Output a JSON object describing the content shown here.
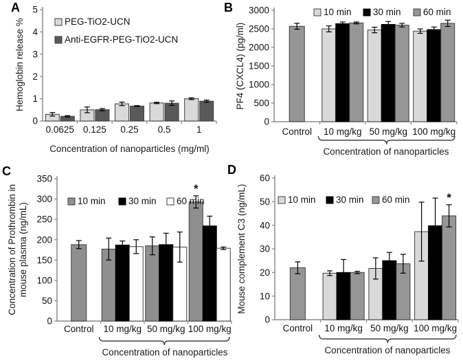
{
  "colors": {
    "light_gray": "#d9d9d9",
    "medium_gray": "#969696",
    "dark_gray": "#595959",
    "black": "#000000",
    "white": "#ffffff",
    "axis": "#8c8c8c",
    "error_bar": "#000000"
  },
  "chart_data": [
    {
      "panel": "A",
      "type": "bar",
      "ylabel": "Hemoglobin release %",
      "xlabel": "Concentration of nanoparticles (mg/ml)",
      "ylim": [
        0,
        5
      ],
      "yticks": [
        0,
        1,
        2,
        3,
        4,
        5
      ],
      "legend_position": "top-left-vertical",
      "series": [
        {
          "name": "PEG-TiO2-UCN",
          "color": "#d9d9d9"
        },
        {
          "name": "Anti-EGFR-PEG-TiO2-UCN",
          "color": "#595959"
        }
      ],
      "groups": [
        {
          "label": "0.0625",
          "bars": [
            {
              "series": 0,
              "value": 0.3,
              "error": 0.08
            },
            {
              "series": 1,
              "value": 0.21,
              "error": 0.03
            }
          ]
        },
        {
          "label": "0.125",
          "bars": [
            {
              "series": 0,
              "value": 0.5,
              "error": 0.13
            },
            {
              "series": 1,
              "value": 0.51,
              "error": 0.05
            }
          ]
        },
        {
          "label": "0.25",
          "bars": [
            {
              "series": 0,
              "value": 0.77,
              "error": 0.08
            },
            {
              "series": 1,
              "value": 0.67,
              "error": 0.02
            }
          ]
        },
        {
          "label": "0.5",
          "bars": [
            {
              "series": 0,
              "value": 0.81,
              "error": 0.03
            },
            {
              "series": 1,
              "value": 0.8,
              "error": 0.1
            }
          ]
        },
        {
          "label": "1",
          "bars": [
            {
              "series": 0,
              "value": 1.0,
              "error": 0.04
            },
            {
              "series": 1,
              "value": 0.89,
              "error": 0.05
            }
          ]
        }
      ],
      "annotations": []
    },
    {
      "panel": "B",
      "type": "bar",
      "ylabel": "PF4 (CXCL4) (pg/ml)",
      "xlabel": "Concentration of nanoparticles",
      "ylim": [
        0,
        3000
      ],
      "yticks": [
        0,
        500,
        1000,
        1500,
        2000,
        2500,
        3000
      ],
      "legend_position": "top-horizontal",
      "control_color": "#969696",
      "series": [
        {
          "name": "10 min",
          "color": "#d9d9d9"
        },
        {
          "name": "30 min",
          "color": "#000000"
        },
        {
          "name": "60 min",
          "color": "#969696"
        }
      ],
      "groups": [
        {
          "label": "Control",
          "bars": [
            {
              "series": "control",
              "value": 2570,
              "error": 80
            }
          ]
        },
        {
          "label": "10 mg/kg",
          "bars": [
            {
              "series": 0,
              "value": 2500,
              "error": 80
            },
            {
              "series": 1,
              "value": 2640,
              "error": 45
            },
            {
              "series": 2,
              "value": 2660,
              "error": 25
            }
          ]
        },
        {
          "label": "50 mg/kg",
          "bars": [
            {
              "series": 0,
              "value": 2470,
              "error": 75
            },
            {
              "series": 1,
              "value": 2620,
              "error": 80
            },
            {
              "series": 2,
              "value": 2600,
              "error": 50
            }
          ]
        },
        {
          "label": "100 mg/kg",
          "bars": [
            {
              "series": 0,
              "value": 2440,
              "error": 60
            },
            {
              "series": 1,
              "value": 2480,
              "error": 70
            },
            {
              "series": 2,
              "value": 2650,
              "error": 85
            }
          ]
        }
      ],
      "bracket": {
        "from": "10 mg/kg",
        "to": "100 mg/kg"
      },
      "annotations": []
    },
    {
      "panel": "C",
      "type": "bar",
      "ylabel": "Concentration of Prothrombin in\nmouse plasma (ng/mL)",
      "xlabel": "Concentration of nanoparticles",
      "ylim": [
        0,
        350
      ],
      "yticks": [
        0,
        50,
        100,
        150,
        200,
        250,
        300,
        350
      ],
      "legend_position": "top-horizontal",
      "control_color": "#8f8f8f",
      "series": [
        {
          "name": "10 min",
          "color": "#8f8f8f"
        },
        {
          "name": "30 min",
          "color": "#000000"
        },
        {
          "name": "60 min",
          "color": "#ffffff"
        }
      ],
      "groups": [
        {
          "label": "Control",
          "bars": [
            {
              "series": "control",
              "value": 188,
              "error": 10
            }
          ]
        },
        {
          "label": "10 mg/kg",
          "bars": [
            {
              "series": 0,
              "value": 177,
              "error": 27
            },
            {
              "series": 1,
              "value": 187,
              "error": 10
            },
            {
              "series": 2,
              "value": 183,
              "error": 17
            }
          ]
        },
        {
          "label": "50 mg/kg",
          "bars": [
            {
              "series": 0,
              "value": 185,
              "error": 22
            },
            {
              "series": 1,
              "value": 188,
              "error": 28
            },
            {
              "series": 2,
              "value": 182,
              "error": 37
            }
          ]
        },
        {
          "label": "100 mg/kg",
          "bars": [
            {
              "series": 0,
              "value": 293,
              "error": 15
            },
            {
              "series": 1,
              "value": 234,
              "error": 24
            },
            {
              "series": 2,
              "value": 179,
              "error": 3
            }
          ]
        }
      ],
      "bracket": {
        "from": "10 mg/kg",
        "to": "100 mg/kg"
      },
      "annotations": [
        {
          "group": 3,
          "bar": 0,
          "text": "*"
        }
      ]
    },
    {
      "panel": "D",
      "type": "bar",
      "ylabel": "Mouse complement C3 (ng/mL)",
      "xlabel": "Concentration of nanoparticles",
      "ylim": [
        0,
        60
      ],
      "yticks": [
        0,
        10,
        20,
        30,
        40,
        50,
        60
      ],
      "legend_position": "top-horizontal",
      "control_color": "#969696",
      "series": [
        {
          "name": "10 min",
          "color": "#d9d9d9"
        },
        {
          "name": "30 min",
          "color": "#000000"
        },
        {
          "name": "60 min",
          "color": "#969696"
        }
      ],
      "groups": [
        {
          "label": "Control",
          "bars": [
            {
              "series": "control",
              "value": 22,
              "error": 2.5
            }
          ]
        },
        {
          "label": "10 mg/kg",
          "bars": [
            {
              "series": 0,
              "value": 19.7,
              "error": 1
            },
            {
              "series": 1,
              "value": 20,
              "error": 5.5
            },
            {
              "series": 2,
              "value": 20,
              "error": 0.5
            }
          ]
        },
        {
          "label": "50 mg/kg",
          "bars": [
            {
              "series": 0,
              "value": 21.7,
              "error": 4.5
            },
            {
              "series": 1,
              "value": 25,
              "error": 3.5
            },
            {
              "series": 2,
              "value": 23.7,
              "error": 4
            }
          ]
        },
        {
          "label": "100 mg/kg",
          "bars": [
            {
              "series": 0,
              "value": 37.3,
              "error": 12.5
            },
            {
              "series": 1,
              "value": 39.8,
              "error": 11.7
            },
            {
              "series": 2,
              "value": 44,
              "error": 4.7
            }
          ]
        }
      ],
      "bracket": {
        "from": "10 mg/kg",
        "to": "100 mg/kg"
      },
      "annotations": [
        {
          "group": 3,
          "bar": 2,
          "text": "*"
        }
      ]
    }
  ]
}
